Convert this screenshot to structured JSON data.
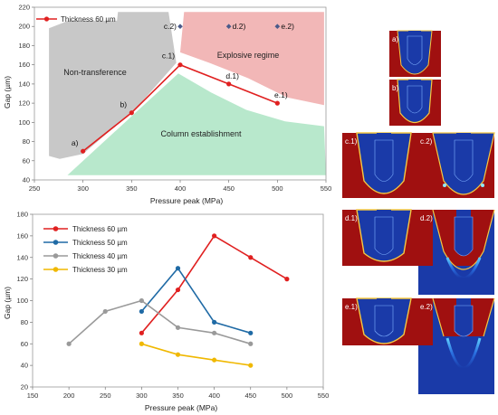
{
  "chart_data": [
    {
      "type": "line",
      "xlabel": "Pressure peak (MPa)",
      "ylabel": "Gap (µm)",
      "xlim": [
        250,
        550
      ],
      "ylim": [
        40,
        220
      ],
      "xticks": [
        250,
        300,
        350,
        400,
        450,
        500,
        550
      ],
      "yticks": [
        40,
        60,
        80,
        100,
        120,
        140,
        160,
        180,
        200,
        220
      ],
      "legend_position": "top-left",
      "series": [
        {
          "name": "Thickness 60 µm",
          "color": "#e02020",
          "x": [
            300,
            350,
            400,
            450,
            500
          ],
          "y": [
            70,
            110,
            160,
            140,
            120
          ]
        }
      ],
      "point_labels": [
        "a)",
        "b)",
        "c.1)",
        "d.1)",
        "e.1)"
      ],
      "extra_points": [
        {
          "label": "c.2)",
          "x": 400,
          "y": 200
        },
        {
          "label": "d.2)",
          "x": 450,
          "y": 200
        },
        {
          "label": "e.2)",
          "x": 500,
          "y": 200
        }
      ],
      "regions": [
        {
          "label": "Non-transference",
          "color": "#c8c8c8",
          "points": [
            [
              265,
              65
            ],
            [
              265,
              198
            ],
            [
              285,
              206
            ],
            [
              335,
              206
            ],
            [
              336,
              215
            ],
            [
              388,
              215
            ],
            [
              396,
              162
            ],
            [
              355,
              115
            ],
            [
              300,
              67
            ],
            [
              276,
              62
            ]
          ]
        },
        {
          "label": "Explosive regime",
          "color": "#f2b7b7",
          "points": [
            [
              400,
              173
            ],
            [
              404,
              215
            ],
            [
              548,
              215
            ],
            [
              548,
              118
            ],
            [
              510,
              126
            ],
            [
              470,
              146
            ],
            [
              430,
              162
            ]
          ]
        },
        {
          "label": "Column establishment",
          "color": "#b8e8cc",
          "points": [
            [
              284,
              45
            ],
            [
              398,
              151
            ],
            [
              432,
              131
            ],
            [
              468,
              113
            ],
            [
              508,
              101
            ],
            [
              548,
              96
            ],
            [
              550,
              45
            ]
          ]
        }
      ]
    },
    {
      "type": "line",
      "xlabel": "Pressure peak (MPa)",
      "ylabel": "Gap (µm)",
      "xlim": [
        150,
        550
      ],
      "ylim": [
        20,
        180
      ],
      "xticks": [
        150,
        200,
        250,
        300,
        350,
        400,
        450,
        500,
        550
      ],
      "yticks": [
        20,
        40,
        60,
        80,
        100,
        120,
        140,
        160,
        180
      ],
      "legend_position": "top-left",
      "series": [
        {
          "name": "Thickness 60 µm",
          "color": "#e02020",
          "x": [
            300,
            350,
            400,
            450,
            500
          ],
          "y": [
            70,
            110,
            160,
            140,
            120
          ]
        },
        {
          "name": "Thickness 50 µm",
          "color": "#1f6aa5",
          "x": [
            300,
            350,
            400,
            450
          ],
          "y": [
            90,
            130,
            80,
            70
          ]
        },
        {
          "name": "Thickness 40 µm",
          "color": "#9a9a9a",
          "x": [
            200,
            250,
            300,
            350,
            400,
            450
          ],
          "y": [
            60,
            90,
            100,
            75,
            70,
            60
          ]
        },
        {
          "name": "Thickness 30 µm",
          "color": "#f0b800",
          "x": [
            300,
            350,
            400,
            450
          ],
          "y": [
            60,
            50,
            45,
            40
          ]
        }
      ]
    }
  ],
  "sim_panels": {
    "labels": [
      "a)",
      "b)",
      "c.1)",
      "c.2)",
      "d.1)",
      "d.2)",
      "e.1)",
      "e.2)"
    ],
    "colors": {
      "background": "#1a3aa8",
      "material": "#a01010",
      "edge": "#f5c842"
    }
  }
}
